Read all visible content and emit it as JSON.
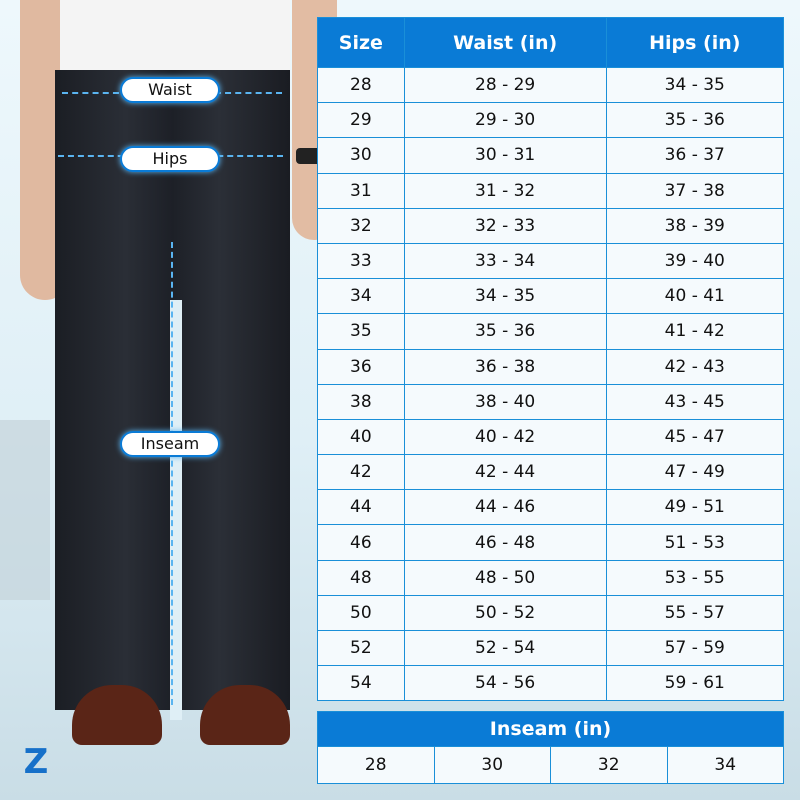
{
  "labels": {
    "waist": "Waist",
    "hips": "Hips",
    "inseam": "Inseam"
  },
  "logo": "Z",
  "size_table": {
    "headers": [
      "Size",
      "Waist (in)",
      "Hips (in)"
    ],
    "rows": [
      [
        "28",
        "28 - 29",
        "34 - 35"
      ],
      [
        "29",
        "29 - 30",
        "35 - 36"
      ],
      [
        "30",
        "30 - 31",
        "36 - 37"
      ],
      [
        "31",
        "31 - 32",
        "37 - 38"
      ],
      [
        "32",
        "32 - 33",
        "38 - 39"
      ],
      [
        "33",
        "33 - 34",
        "39 - 40"
      ],
      [
        "34",
        "34 - 35",
        "40 - 41"
      ],
      [
        "35",
        "35 - 36",
        "41 - 42"
      ],
      [
        "36",
        "36 - 38",
        "42 - 43"
      ],
      [
        "38",
        "38 - 40",
        "43 - 45"
      ],
      [
        "40",
        "40 - 42",
        "45 - 47"
      ],
      [
        "42",
        "42 - 44",
        "47 - 49"
      ],
      [
        "44",
        "44 - 46",
        "49 - 51"
      ],
      [
        "46",
        "46 - 48",
        "51 - 53"
      ],
      [
        "48",
        "48 - 50",
        "53 - 55"
      ],
      [
        "50",
        "50 - 52",
        "55 - 57"
      ],
      [
        "52",
        "52 - 54",
        "57 - 59"
      ],
      [
        "54",
        "54 - 56",
        "59 - 61"
      ]
    ]
  },
  "inseam_table": {
    "header": "Inseam (in)",
    "values": [
      "28",
      "30",
      "32",
      "34"
    ]
  },
  "colors": {
    "accent": "#0a7bd6"
  }
}
